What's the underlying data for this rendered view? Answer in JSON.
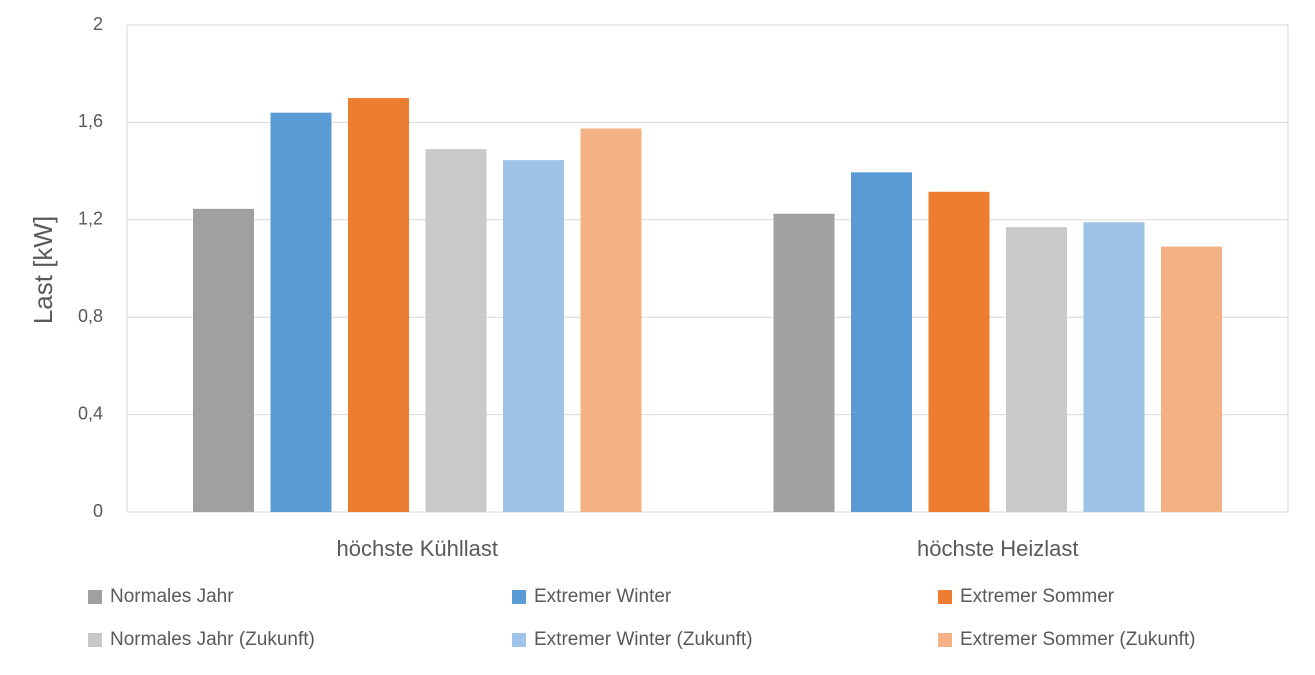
{
  "chart_data": {
    "type": "bar",
    "y_label": "Last [kW]",
    "categories": [
      "höchste Kühllast",
      "höchste Heizlast"
    ],
    "series": [
      {
        "name": "Normales Jahr",
        "color": "#a0a0a0",
        "values": [
          1.245,
          1.225
        ]
      },
      {
        "name": "Extremer Winter",
        "color": "#5b9bd5",
        "values": [
          1.64,
          1.395
        ]
      },
      {
        "name": "Extremer Sommer",
        "color": "#ed7d31",
        "values": [
          1.7,
          1.315
        ]
      },
      {
        "name": "Normales Jahr (Zukunft)",
        "color": "#c9c9c9",
        "values": [
          1.49,
          1.17
        ]
      },
      {
        "name": "Extremer Winter (Zukunft)",
        "color": "#9dc3e6",
        "values": [
          1.445,
          1.19
        ]
      },
      {
        "name": "Extremer Sommer (Zukunft)",
        "color": "#f4b183",
        "values": [
          1.575,
          1.09
        ]
      }
    ],
    "ylim": [
      0,
      2
    ],
    "yticks": [
      0,
      {
        "value": 0.4,
        "label": "0,4"
      },
      {
        "value": 0.8,
        "label": "0,8"
      },
      {
        "value": 1.2,
        "label": "1,2"
      },
      {
        "value": 1.6,
        "label": "1,6"
      },
      2
    ],
    "grid": true
  }
}
